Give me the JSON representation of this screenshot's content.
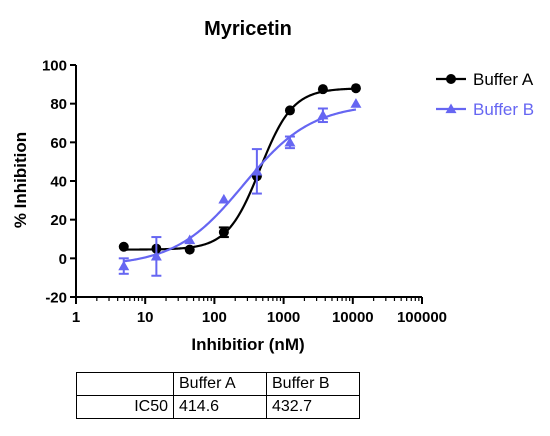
{
  "chart_data": {
    "type": "scatter",
    "title": "Myricetin",
    "xlabel": "Inhibitior (nM)",
    "ylabel": "% Inhibition",
    "xscale": "log",
    "xlim": [
      1,
      100000
    ],
    "ylim": [
      -20,
      100
    ],
    "xticks": [
      "1",
      "10",
      "100",
      "1000",
      "10000",
      "100000"
    ],
    "yticks": [
      "-20",
      "0",
      "20",
      "40",
      "60",
      "80",
      "100"
    ],
    "legend_position": "top-right",
    "series": [
      {
        "name": "Buffer A",
        "color": "#000000",
        "marker": "circle",
        "fit": "sigmoid dose-response",
        "x": [
          4.9,
          14.5,
          44,
          137,
          411,
          1235,
          3700,
          11100
        ],
        "y": [
          6,
          5,
          4.5,
          13.5,
          42.5,
          76.5,
          87.5,
          88
        ],
        "err": [
          0,
          0,
          0,
          2.5,
          0,
          0,
          0,
          0
        ]
      },
      {
        "name": "Buffer B",
        "color": "#6666f2",
        "marker": "triangle",
        "fit": "sigmoid dose-response",
        "x": [
          4.9,
          14.5,
          44,
          137,
          411,
          1235,
          3700,
          11100
        ],
        "y": [
          -4,
          1,
          9.5,
          30.5,
          45,
          60,
          74,
          80
        ],
        "err": [
          4,
          10,
          0,
          0,
          11.5,
          3,
          3.5,
          0
        ]
      }
    ]
  },
  "table": {
    "headers": [
      "",
      "Buffer A",
      "Buffer B"
    ],
    "rows": [
      [
        "IC50",
        "414.6",
        "432.7"
      ]
    ]
  }
}
